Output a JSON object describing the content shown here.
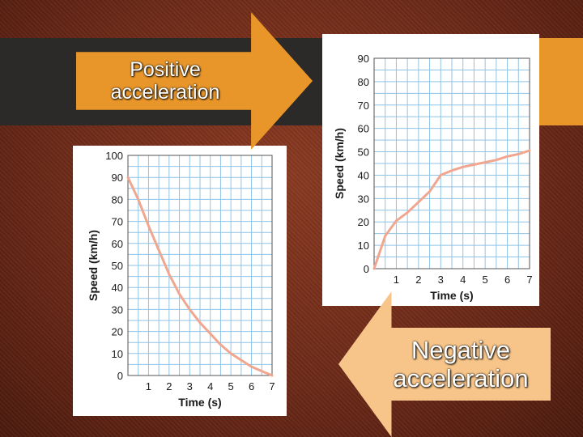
{
  "arrows": {
    "positive": "Positive acceleration",
    "negative": "Negative acceleration"
  },
  "colors": {
    "curve": "#f0a68f",
    "grid": "#8fc3e6",
    "arrow_orange": "#e8962a",
    "arrow_light": "#f7c589"
  },
  "chart_data": [
    {
      "type": "line",
      "xlabel": "Time (s)",
      "ylabel": "Speed (km/h)",
      "xlim": [
        0,
        7
      ],
      "ylim": [
        0,
        90
      ],
      "xticks": [
        1,
        2,
        3,
        4,
        5,
        6,
        7
      ],
      "yticks": [
        0,
        10,
        20,
        30,
        40,
        50,
        60,
        70,
        80,
        90
      ],
      "grid": true,
      "series": [
        {
          "x": [
            0,
            0.5,
            1,
            1.5,
            2,
            2.5,
            3,
            3.5,
            4,
            4.5,
            5,
            5.5,
            6,
            6.5,
            7
          ],
          "y": [
            0,
            14,
            20.5,
            24,
            28.5,
            33,
            40,
            42,
            43.5,
            44.5,
            45.5,
            46.5,
            48,
            49,
            50.5
          ]
        }
      ]
    },
    {
      "type": "line",
      "xlabel": "Time (s)",
      "ylabel": "Speed (km/h)",
      "xlim": [
        0,
        7
      ],
      "ylim": [
        0,
        100
      ],
      "xticks": [
        1,
        2,
        3,
        4,
        5,
        6,
        7
      ],
      "yticks": [
        0,
        10,
        20,
        30,
        40,
        50,
        60,
        70,
        80,
        90,
        100
      ],
      "grid": true,
      "series": [
        {
          "x": [
            0,
            0.5,
            1,
            1.5,
            2,
            2.5,
            3,
            3.5,
            4,
            4.5,
            5,
            5.5,
            6,
            6.5,
            7
          ],
          "y": [
            90,
            80,
            68,
            57,
            46,
            37,
            30,
            24,
            19,
            14,
            10,
            7,
            4,
            2,
            0
          ]
        }
      ]
    }
  ]
}
